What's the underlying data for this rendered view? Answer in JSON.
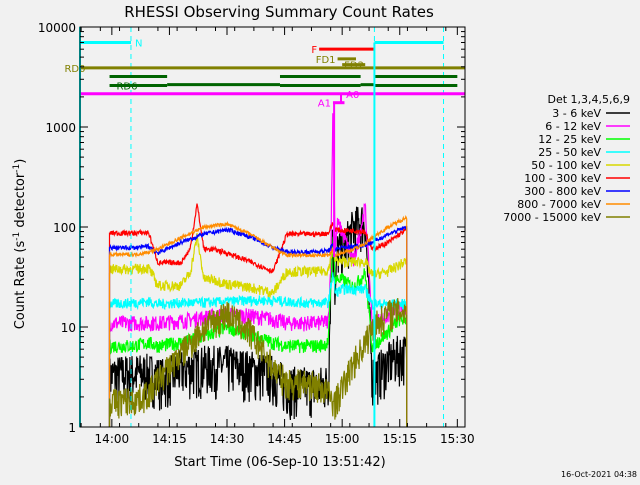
{
  "chart_data": {
    "type": "line",
    "title": "RHESSI Observing Summary Count Rates",
    "xlabel": "Start Time (06-Sep-10 13:51:42)",
    "ylabel": "Count Rate (s",
    "ylabel_exp": "-1",
    "ylabel_tail": " detector",
    "ylabel_close": ")",
    "yscale": "log",
    "xlim": [
      13.8617,
      15.5333
    ],
    "ylim": [
      1,
      10000
    ],
    "x_ticks": [
      {
        "value": 14.0,
        "label": "14:00"
      },
      {
        "value": 14.25,
        "label": "14:15"
      },
      {
        "value": 14.5,
        "label": "14:30"
      },
      {
        "value": 14.75,
        "label": "14:45"
      },
      {
        "value": 15.0,
        "label": "15:00"
      },
      {
        "value": 15.25,
        "label": "15:15"
      },
      {
        "value": 15.5,
        "label": "15:30"
      }
    ],
    "y_ticks": [
      {
        "value": 1,
        "label": "1"
      },
      {
        "value": 10,
        "label": "10"
      },
      {
        "value": 100,
        "label": "100"
      },
      {
        "value": 1000,
        "label": "1000"
      },
      {
        "value": 10000,
        "label": "10000"
      }
    ],
    "legend_title": "Det 1,3,4,5,6,9",
    "legend_position": "right",
    "series": [
      {
        "name": "3 - 6 keV",
        "color": "#000000",
        "x": [
          13.99,
          14.1,
          14.16,
          14.23,
          14.3,
          14.4,
          14.5,
          14.6,
          14.7,
          14.76,
          14.84,
          14.9,
          14.94,
          14.95,
          14.96,
          14.97,
          14.98,
          15.0,
          15.05,
          15.1,
          15.13,
          15.15,
          15.2,
          15.25,
          15.28
        ],
        "values": [
          3.3,
          3.5,
          3.5,
          3.1,
          3.8,
          4.2,
          4.2,
          3.8,
          3.4,
          2.6,
          2.6,
          2.6,
          2.8,
          30,
          90,
          20,
          60,
          60,
          100,
          120,
          3.4,
          3.5,
          4.5,
          5.5,
          5.5
        ]
      },
      {
        "name": "6 - 12 keV",
        "color": "#ff00ff",
        "x": [
          13.99,
          14.1,
          14.16,
          14.2,
          14.3,
          14.4,
          14.5,
          14.6,
          14.7,
          14.76,
          14.84,
          14.9,
          14.94,
          14.95,
          14.96,
          14.97,
          14.98,
          15.0,
          15.05,
          15.1,
          15.13,
          15.15,
          15.2,
          15.25,
          15.28
        ],
        "values": [
          11,
          11,
          11,
          11,
          11.5,
          12.5,
          13.5,
          13,
          12,
          11,
          11,
          11,
          11.5,
          40,
          1700,
          60,
          110,
          90,
          45,
          160,
          11,
          11.5,
          13,
          15,
          15
        ]
      },
      {
        "name": "12 - 25 keV",
        "color": "#00ff00",
        "x": [
          13.99,
          14.1,
          14.16,
          14.2,
          14.3,
          14.4,
          14.5,
          14.6,
          14.7,
          14.76,
          14.84,
          14.9,
          14.94,
          14.95,
          14.96,
          14.97,
          15.0,
          15.05,
          15.1,
          15.13,
          15.15,
          15.2,
          15.25,
          15.28
        ],
        "values": [
          6.5,
          6.5,
          7,
          6.5,
          7,
          8,
          10,
          8.5,
          7,
          6.5,
          6.5,
          6.5,
          7,
          25,
          80,
          30,
          30,
          25,
          35,
          6.5,
          7,
          9,
          12,
          12
        ]
      },
      {
        "name": "25 - 50 keV",
        "color": "#00ffff",
        "x": [
          13.99,
          14.1,
          14.16,
          14.2,
          14.3,
          14.4,
          14.5,
          14.6,
          14.7,
          14.76,
          14.84,
          14.9,
          14.94,
          14.96,
          14.97,
          15.0,
          15.05,
          15.1,
          15.13,
          15.2,
          15.28
        ],
        "values": [
          17,
          17.5,
          18,
          17,
          17.5,
          17.5,
          18,
          18.5,
          18.5,
          18,
          17.5,
          17.5,
          17.5,
          35,
          22,
          24,
          24,
          24,
          17,
          17,
          17
        ]
      },
      {
        "name": "50 - 100 keV",
        "color": "#d8d800",
        "x": [
          13.99,
          14.1,
          14.16,
          14.2,
          14.24,
          14.3,
          14.34,
          14.37,
          14.4,
          14.44,
          14.5,
          14.6,
          14.7,
          14.76,
          14.84,
          14.9,
          14.94,
          14.96,
          14.97,
          15.0,
          15.05,
          15.1,
          15.13,
          15.2,
          15.28
        ],
        "values": [
          38,
          38,
          39,
          26,
          26,
          26,
          35,
          80,
          30,
          30,
          27,
          25,
          22,
          36,
          36,
          36,
          37,
          62,
          46,
          45,
          45,
          45,
          33,
          36,
          46
        ]
      },
      {
        "name": "100 - 300 keV",
        "color": "#ff0000",
        "x": [
          13.99,
          14.1,
          14.16,
          14.2,
          14.24,
          14.3,
          14.34,
          14.37,
          14.4,
          14.44,
          14.5,
          14.6,
          14.7,
          14.76,
          14.84,
          14.9,
          14.94,
          14.96,
          14.97,
          15.0,
          15.05,
          15.1,
          15.13,
          15.2,
          15.28
        ],
        "values": [
          87,
          87,
          88,
          44,
          44,
          44,
          60,
          170,
          60,
          60,
          55,
          45,
          36,
          85,
          85,
          85,
          87,
          110,
          95,
          92,
          92,
          90,
          60,
          70,
          95
        ]
      },
      {
        "name": "300 - 800 keV",
        "color": "#0000ff",
        "x": [
          13.99,
          14.1,
          14.16,
          14.2,
          14.3,
          14.4,
          14.5,
          14.6,
          14.7,
          14.76,
          14.84,
          14.9,
          14.94,
          14.96,
          14.97,
          15.0,
          15.05,
          15.1,
          15.13,
          15.2,
          15.28
        ],
        "values": [
          62,
          62,
          64,
          55,
          70,
          85,
          94,
          80,
          62,
          56,
          56,
          57,
          58,
          66,
          60,
          62,
          64,
          66,
          70,
          85,
          100
        ]
      },
      {
        "name": "800 - 7000 keV",
        "color": "#ff8c00",
        "x": [
          13.99,
          14.1,
          14.16,
          14.2,
          14.3,
          14.4,
          14.5,
          14.6,
          14.7,
          14.76,
          14.84,
          14.9,
          14.94,
          14.96,
          14.97,
          15.0,
          15.05,
          15.1,
          15.13,
          15.2,
          15.28
        ],
        "values": [
          53,
          53,
          56,
          60,
          78,
          100,
          107,
          85,
          62,
          52,
          52,
          52,
          52,
          58,
          53,
          55,
          60,
          68,
          78,
          100,
          125
        ]
      },
      {
        "name": "7000 - 15000 keV",
        "color": "#808000",
        "x": [
          13.99,
          14.1,
          14.16,
          14.2,
          14.3,
          14.4,
          14.5,
          14.6,
          14.7,
          14.76,
          14.84,
          14.9,
          14.94,
          14.96,
          14.97,
          15.0,
          15.05,
          15.1,
          15.13,
          15.2,
          15.28
        ],
        "values": [
          1.8,
          1.9,
          2.2,
          3,
          5.5,
          10,
          14,
          9,
          4,
          2.8,
          2.8,
          2.6,
          2.2,
          1.8,
          1.8,
          2.5,
          4.5,
          7,
          10,
          14,
          15
        ]
      }
    ],
    "annotations": {
      "N": {
        "label": "N",
        "color": "#00ffff",
        "y": 7000,
        "segments": [
          [
            13.8617,
            14.083
          ],
          [
            15.14,
            15.44
          ]
        ],
        "markers": [
          14.083,
          15.14,
          15.44
        ]
      },
      "F": {
        "label": "F",
        "color": "#ff0000",
        "y": 6000,
        "segments": [
          [
            14.9,
            15.14
          ]
        ]
      },
      "FD1": {
        "label": "FD1",
        "color": "#808000",
        "y": 4800,
        "segments": [
          [
            14.98,
            15.06
          ]
        ]
      },
      "FD2": {
        "label": "FD2",
        "color": "#808000",
        "y": 4200,
        "segments": [
          [
            15.0,
            15.1
          ]
        ]
      },
      "RD0": {
        "label": "RD0",
        "color": "#808000",
        "y": 3900,
        "segments": [
          [
            13.8617,
            15.5333
          ]
        ]
      },
      "RD0_bars": {
        "label": "",
        "color": "#006400",
        "y": 3200,
        "segments": [
          [
            13.99,
            14.24
          ],
          [
            14.73,
            15.08
          ],
          [
            15.14,
            15.5
          ]
        ]
      },
      "RD6": {
        "label": "RD6",
        "color": "#006400",
        "y": 2600,
        "segments": [
          [
            13.99,
            14.24
          ],
          [
            14.73,
            15.08
          ],
          [
            15.14,
            15.5
          ]
        ]
      },
      "RD6_bars": {
        "label": "",
        "color": "#006400",
        "y": 2650,
        "segments": [
          [
            14.24,
            14.73
          ],
          [
            15.08,
            15.14
          ]
        ]
      },
      "A0": {
        "label": "A0",
        "color": "#ff00ff",
        "y": 2150,
        "segments": [
          [
            13.8617,
            15.5333
          ]
        ]
      },
      "A1": {
        "label": "A1",
        "color": "#ff00ff",
        "y": 1750,
        "segments": [
          [
            14.96,
            15.01
          ]
        ]
      }
    },
    "footer_timestamp": "16-Oct-2021 04:38"
  }
}
